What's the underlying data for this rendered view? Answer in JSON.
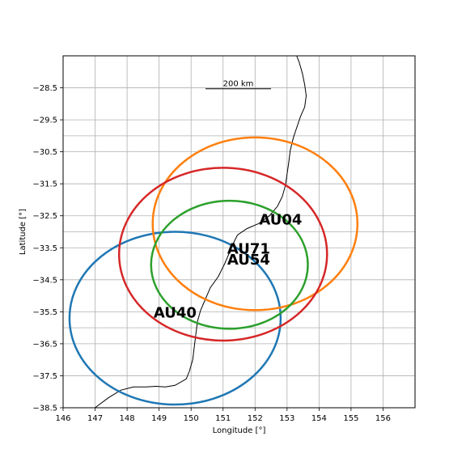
{
  "map": {
    "xlabel": "Longitude [°]",
    "ylabel": "Latitude [°]",
    "xlim": [
      146,
      157
    ],
    "ylim": [
      -38.5,
      -27.5
    ],
    "x_ticks": [
      146,
      147,
      148,
      149,
      150,
      151,
      152,
      153,
      154,
      155,
      156
    ],
    "x_tick_labels": [
      "146",
      "147",
      "148",
      "149",
      "150",
      "151",
      "152",
      "153",
      "154",
      "155",
      "156"
    ],
    "y_gridlines": [
      -28.5,
      -29.5,
      -30.0,
      -30.5,
      -31.5,
      -32.5,
      -33.0,
      -33.5,
      -34.5,
      -35.5,
      -36.0,
      -36.5,
      -37.5,
      -38.5
    ],
    "y_ticks": [
      -28.5,
      -29.5,
      -30.5,
      -31.5,
      -32.5,
      -33.5,
      -34.5,
      -35.5,
      -36.5,
      -37.5,
      -38.5
    ],
    "y_tick_labels": [
      "−28.5",
      "−29.5",
      "−30.5",
      "−31.5",
      "−32.5",
      "−33.5",
      "−34.5",
      "−35.5",
      "−36.5",
      "−37.5",
      "−38.5"
    ],
    "grid": true,
    "scale_bar": {
      "label": "200 km",
      "start": [
        150.45,
        -28.53
      ],
      "end": [
        152.5,
        -28.53
      ]
    },
    "coastline": [
      [
        147.0,
        -38.5
      ],
      [
        147.4,
        -38.2
      ],
      [
        147.8,
        -37.95
      ],
      [
        148.2,
        -37.85
      ],
      [
        148.6,
        -37.85
      ],
      [
        148.9,
        -37.83
      ],
      [
        149.2,
        -37.85
      ],
      [
        149.5,
        -37.8
      ],
      [
        149.85,
        -37.6
      ],
      [
        149.95,
        -37.35
      ],
      [
        150.05,
        -37.0
      ],
      [
        150.1,
        -36.6
      ],
      [
        150.15,
        -36.2
      ],
      [
        150.2,
        -35.8
      ],
      [
        150.3,
        -35.45
      ],
      [
        150.45,
        -35.1
      ],
      [
        150.6,
        -34.75
      ],
      [
        150.85,
        -34.4
      ],
      [
        151.05,
        -34.0
      ],
      [
        151.2,
        -33.65
      ],
      [
        151.3,
        -33.4
      ],
      [
        151.45,
        -33.1
      ],
      [
        151.75,
        -32.9
      ],
      [
        152.1,
        -32.75
      ],
      [
        152.45,
        -32.5
      ],
      [
        152.7,
        -32.2
      ],
      [
        152.85,
        -31.9
      ],
      [
        152.95,
        -31.55
      ],
      [
        153.0,
        -31.2
      ],
      [
        153.05,
        -30.85
      ],
      [
        153.1,
        -30.45
      ],
      [
        153.2,
        -30.05
      ],
      [
        153.3,
        -29.75
      ],
      [
        153.42,
        -29.4
      ],
      [
        153.55,
        -29.1
      ],
      [
        153.6,
        -28.75
      ],
      [
        153.55,
        -28.4
      ],
      [
        153.48,
        -28.05
      ],
      [
        153.38,
        -27.7
      ],
      [
        153.3,
        -27.5
      ]
    ]
  },
  "chart_data": {
    "type": "map",
    "stations": [
      {
        "name": "AU40",
        "label_pos": [
          149.5,
          -35.5
        ]
      },
      {
        "name": "AU04",
        "label_pos": [
          152.8,
          -32.6
        ]
      },
      {
        "name": "AU71",
        "label_pos": [
          151.8,
          -33.5
        ]
      },
      {
        "name": "AU54",
        "label_pos": [
          151.8,
          -33.85
        ]
      }
    ],
    "coverage_circles": [
      {
        "color": "#1f77b4",
        "center": [
          149.5,
          -35.7
        ],
        "rx_deg": 3.3,
        "ry_deg": 2.7
      },
      {
        "color": "#ff7f0e",
        "center": [
          152.0,
          -32.75
        ],
        "rx_deg": 3.2,
        "ry_deg": 2.7
      },
      {
        "color": "#2ca02c",
        "center": [
          151.2,
          -34.03
        ],
        "rx_deg": 2.45,
        "ry_deg": 2.0
      },
      {
        "color": "#d62728",
        "center": [
          151.0,
          -33.7
        ],
        "rx_deg": 3.25,
        "ry_deg": 2.7
      }
    ]
  }
}
